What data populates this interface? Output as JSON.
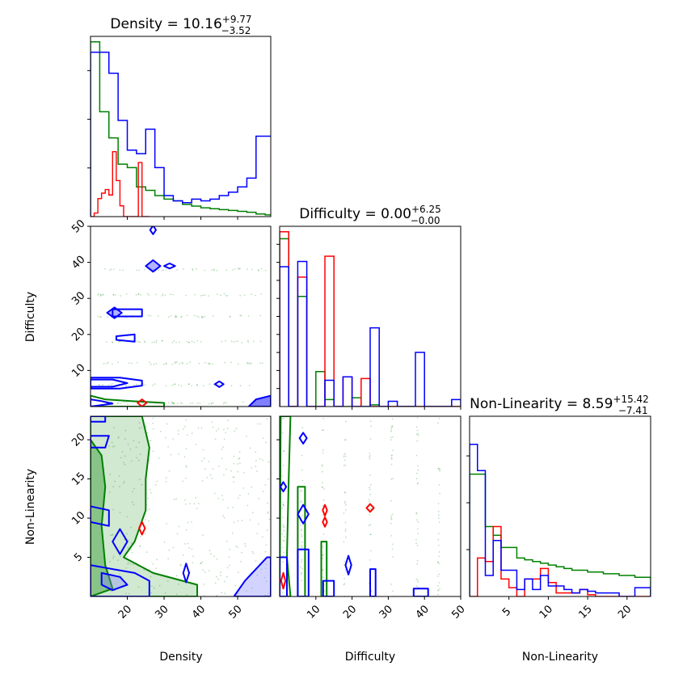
{
  "chart_data": {
    "type": "corner",
    "colors": {
      "series_a": "#008000",
      "series_b": "#ff0000",
      "series_c": "#0000ff",
      "contour_fill": "#8080ff"
    },
    "parameters": [
      {
        "name": "Density",
        "xlabel": "Density",
        "range": [
          10,
          59
        ],
        "ticks": [
          20,
          30,
          40,
          50
        ],
        "title": {
          "prefix": "Density = ",
          "value": "10.16",
          "plus": "+9.77",
          "minus": "−3.52"
        }
      },
      {
        "name": "Difficulty",
        "xlabel": "Difficulty",
        "range": [
          0,
          50
        ],
        "ticks": [
          10,
          20,
          30,
          40,
          50
        ],
        "title": {
          "prefix": "Difficulty = ",
          "value": "0.00",
          "plus": "+6.25",
          "minus": "−0.00"
        }
      },
      {
        "name": "Non-Linearity",
        "xlabel": "Non-Linearity",
        "range": [
          0,
          23
        ],
        "ticks": [
          5,
          10,
          15,
          20
        ],
        "title": {
          "prefix": "Non-Linearity = ",
          "value": "8.59",
          "plus": "+15.42",
          "minus": "−7.41"
        }
      }
    ],
    "ylabels": {
      "row1": "Difficulty",
      "row2": "Non-Linearity"
    },
    "hist_density": {
      "edges": [
        10,
        12.5,
        15,
        17.5,
        20,
        22.5,
        25,
        27.5,
        30,
        32.5,
        35,
        37.5,
        40,
        42.5,
        45,
        47.5,
        50,
        52.5,
        55,
        57.5,
        60
      ],
      "green": [
        1.0,
        0.6,
        0.45,
        0.3,
        0.28,
        0.17,
        0.15,
        0.12,
        0.1,
        0.09,
        0.07,
        0.06,
        0.05,
        0.045,
        0.04,
        0.035,
        0.03,
        0.025,
        0.015,
        0.01
      ],
      "blue": [
        0.94,
        0.94,
        0.82,
        0.55,
        0.38,
        0.36,
        0.5,
        0.28,
        0.12,
        0.09,
        0.08,
        0.1,
        0.09,
        0.1,
        0.12,
        0.14,
        0.17,
        0.22,
        0.46,
        0.46
      ],
      "red_x": [
        10,
        11,
        12,
        13,
        14,
        15,
        16,
        17,
        18,
        19,
        20,
        21,
        22,
        23,
        24,
        25
      ],
      "red_y": [
        0,
        0.02,
        0.1,
        0.13,
        0.15,
        0.12,
        0.36,
        0.2,
        0.06,
        0,
        0,
        0,
        0,
        0.3,
        0,
        0
      ]
    },
    "hist_difficulty": {
      "edges": [
        0,
        2.5,
        5,
        7.5,
        10,
        12.5,
        15,
        17.5,
        20,
        22.5,
        25,
        27.5,
        30,
        32.5,
        35,
        37.5,
        40,
        42.5,
        45,
        47.5,
        50
      ],
      "blue": [
        0.8,
        0,
        0.83,
        0,
        0,
        0.15,
        0,
        0.17,
        0,
        0,
        0.45,
        0,
        0.03,
        0,
        0,
        0.31,
        0,
        0,
        0,
        0.04
      ],
      "red": [
        1.0,
        0,
        0.74,
        0,
        0,
        0.86,
        0,
        0.17,
        0,
        0.16,
        0,
        0,
        0,
        0,
        0,
        0,
        0,
        0,
        0,
        0
      ],
      "green": [
        0.96,
        0,
        0.63,
        0,
        0.2,
        0.04,
        0,
        0,
        0.05,
        0,
        0.01,
        0,
        0,
        0,
        0,
        0,
        0,
        0,
        0,
        0
      ]
    },
    "hist_nonlinearity": {
      "edges": [
        0,
        1,
        2,
        3,
        4,
        5,
        6,
        7,
        8,
        9,
        10,
        11,
        12,
        13,
        14,
        15,
        16,
        17,
        18,
        19,
        20,
        21,
        22,
        23
      ],
      "green": [
        0.7,
        0.7,
        0.4,
        0.35,
        0.28,
        0.28,
        0.22,
        0.21,
        0.2,
        0.19,
        0.18,
        0.17,
        0.16,
        0.15,
        0.15,
        0.14,
        0.14,
        0.13,
        0.13,
        0.12,
        0.12,
        0.11,
        0.11
      ],
      "blue": [
        0.87,
        0.72,
        0.12,
        0.32,
        0.15,
        0.15,
        0.04,
        0.1,
        0.04,
        0.12,
        0.06,
        0.06,
        0.04,
        0.02,
        0.04,
        0.03,
        0.02,
        0.02,
        0.02,
        0.0,
        0.0,
        0.05,
        0.05
      ],
      "red": [
        0,
        0.22,
        0.2,
        0.4,
        0.1,
        0.05,
        0,
        0.1,
        0.1,
        0.16,
        0.08,
        0.02,
        0.02,
        0.02,
        0.04,
        0.01,
        0,
        0,
        0,
        0,
        0,
        0,
        0
      ]
    }
  }
}
